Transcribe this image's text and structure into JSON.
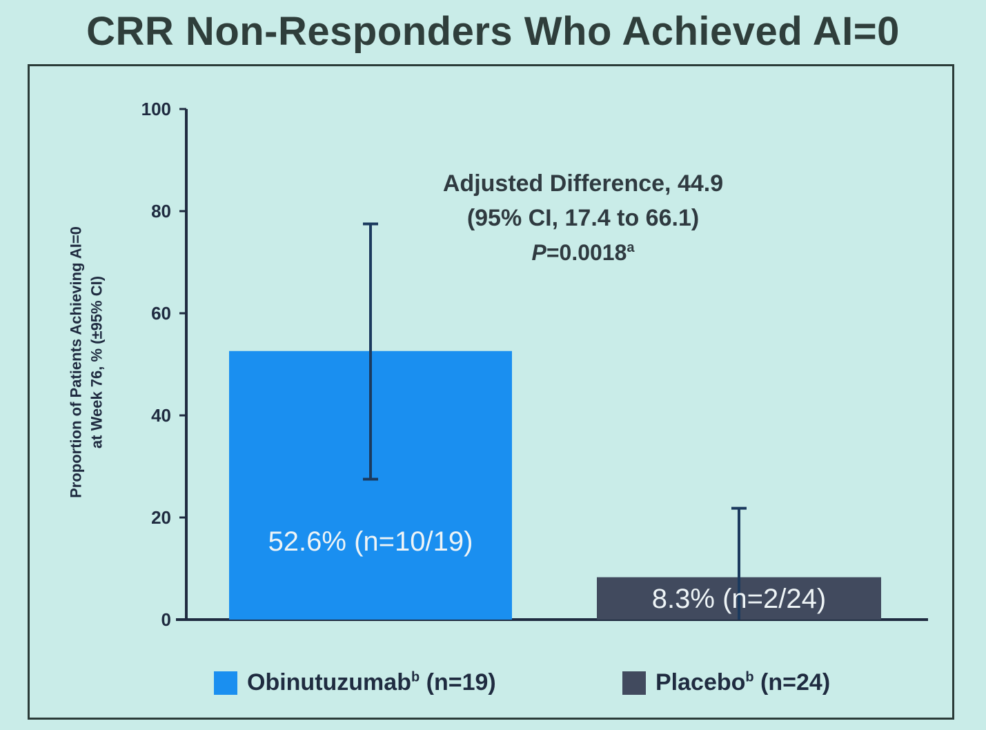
{
  "title": "CRR Non-Responders Who Achieved AI=0",
  "chart_data": {
    "type": "bar",
    "title": "CRR Non-Responders Who Achieved AI=0",
    "ylabel_line1": "Proportion of Patients Achieving AI=0",
    "ylabel_line2": "at Week 76, % (±95% CI)",
    "ylim": [
      0,
      100
    ],
    "yticks": [
      "0",
      "20",
      "40",
      "60",
      "80",
      "100"
    ],
    "categories": [
      "Obinutuzumab",
      "Placebo"
    ],
    "values": [
      52.6,
      8.3
    ],
    "ci_low": [
      27.5,
      0
    ],
    "ci_high": [
      77.5,
      21.8
    ],
    "bar_labels": [
      "52.6% (n=10/19)",
      "8.3% (n=2/24)"
    ],
    "colors": [
      "#1a8ff0",
      "#414a5e"
    ],
    "annotation": {
      "line1": "Adjusted Difference, 44.9",
      "line2": "(95% CI, 17.4 to 66.1)",
      "line3_prefix": "P",
      "line3_rest": "=0.0018",
      "line3_sup": "a"
    },
    "legend": [
      {
        "name": "Obinutuzumab",
        "sup": "b",
        "n": " (n=19)",
        "color": "#1a8ff0"
      },
      {
        "name": "Placebo",
        "sup": "b",
        "n": " (n=24)",
        "color": "#414a5e"
      }
    ],
    "legend_position": "bottom"
  }
}
